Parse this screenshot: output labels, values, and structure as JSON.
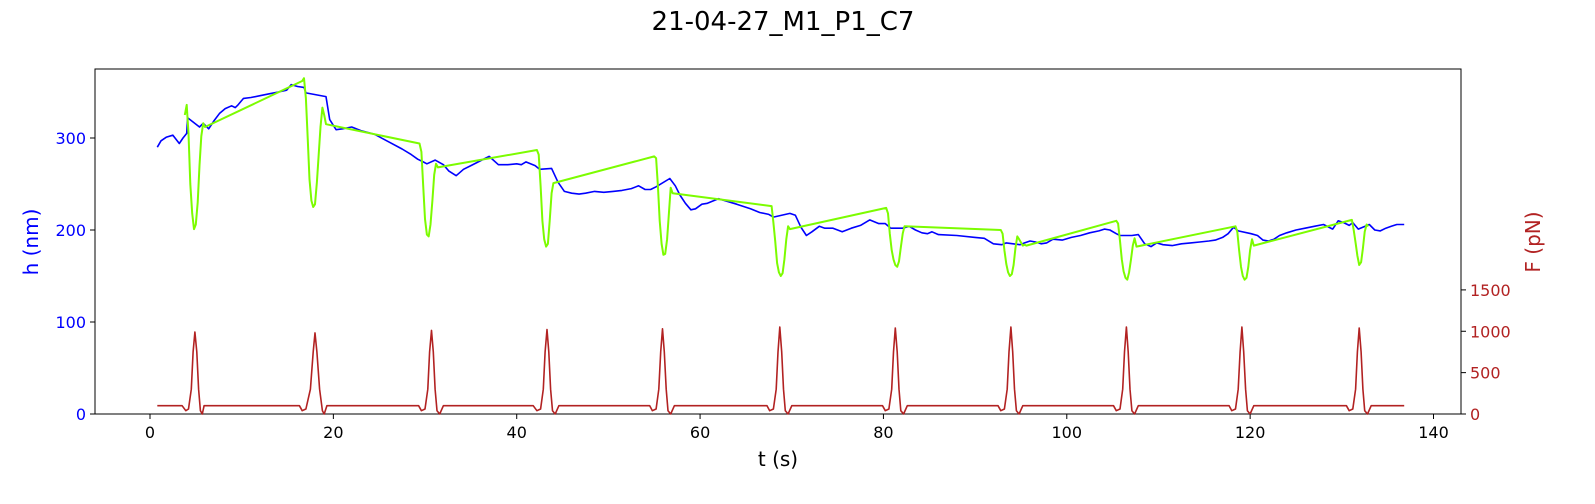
{
  "chart_data": {
    "type": "line",
    "title": "21-04-27_M1_P1_C7",
    "xlabel": "t (s)",
    "ylabel_left": "h (nm)",
    "ylabel_right": "F (pN)",
    "xlim": [
      -6,
      143
    ],
    "ylim_left": [
      0,
      375
    ],
    "ylim_right": [
      0,
      4170
    ],
    "xticks": [
      0,
      20,
      40,
      60,
      80,
      100,
      120,
      140
    ],
    "yticks_left": [
      0,
      100,
      200,
      300
    ],
    "yticks_right": [
      0,
      500,
      1000,
      1500
    ],
    "grid": false,
    "colors": {
      "left_axis": "#0000ff",
      "right_axis": "#b22222",
      "height_series": "#0000ff",
      "compression_series": "#7cfc00",
      "force_series": "#b22222"
    },
    "series": [
      {
        "axis": "left",
        "color": "#0000ff",
        "x": [
          0.8,
          1.2,
          1.8,
          2.5,
          3.2,
          3.6,
          4.0,
          4.1,
          5.4,
          5.8,
          6.4,
          7.0,
          7.6,
          8.2,
          8.9,
          9.3,
          9.6,
          10.2,
          11,
          12,
          13,
          14,
          14.9,
          15.4,
          16.1,
          16.8,
          17.0,
          19.2,
          19.6,
          20.3,
          21.0,
          22.0,
          23.0,
          24.5,
          26.0,
          27.5,
          28.5,
          29.2,
          29.8,
          30.2,
          31.1,
          32.0,
          32.6,
          33.4,
          34.2,
          35.0,
          36.0,
          37.0,
          38.0,
          39.0,
          40.0,
          40.5,
          41.0,
          42.0,
          42.5,
          43.8,
          44.5,
          45.2,
          46.0,
          46.8,
          47.5,
          48.5,
          49.5,
          50.5,
          51.5,
          52.5,
          53.3,
          54.0,
          54.6,
          55.2,
          56.7,
          57.3,
          57.8,
          58.4,
          59.0,
          59.5,
          60.2,
          60.8,
          62,
          64,
          65.5,
          66.5,
          67.5,
          68.0,
          69.8,
          70.4,
          71.0,
          71.6,
          72.2,
          73.0,
          73.6,
          74.5,
          75.5,
          76.5,
          77.5,
          78.5,
          79.5,
          80.2,
          80.8,
          82.1,
          82.8,
          83.5,
          84.2,
          84.8,
          85.3,
          86,
          88,
          90,
          91,
          92,
          92.9,
          93.4,
          94.9,
          95.4,
          96,
          96.6,
          97.2,
          97.8,
          98.5,
          99.5,
          100.5,
          101.5,
          102.5,
          103.5,
          104.1,
          104.7,
          105.4,
          105.8,
          107.1,
          107.8,
          108.5,
          109.2,
          109.8,
          110.5,
          111.5,
          112.5,
          113.5,
          114.5,
          115.5,
          116.2,
          117.0,
          117.6,
          118.2,
          118.7,
          120.1,
          120.8,
          121.4,
          122.0,
          122.6,
          123.2,
          124.0,
          125.0,
          126.0,
          127.0,
          128.0,
          129.0,
          129.6,
          130.2,
          130.8,
          131.2,
          131.8,
          133.0,
          133.6,
          134.2,
          134.8,
          135.4,
          136.0,
          136.8
        ],
        "y": [
          290,
          297,
          301,
          303,
          294,
          300,
          305,
          322,
          312,
          316,
          310,
          319,
          327,
          332,
          335,
          333,
          336,
          343,
          344,
          346,
          348,
          350,
          352,
          358,
          356,
          355,
          349,
          345,
          320,
          309,
          310,
          312,
          308,
          304,
          296,
          288,
          282,
          277,
          274,
          272,
          276,
          271,
          264,
          259,
          266,
          270,
          275,
          280,
          271,
          271,
          272,
          271,
          274,
          270,
          266,
          267,
          252,
          242,
          240,
          239,
          240,
          242,
          241,
          242,
          243,
          245,
          248,
          244,
          244,
          247,
          256,
          248,
          238,
          229,
          222,
          223,
          228,
          229,
          234,
          228,
          223,
          219,
          217,
          214,
          218,
          216,
          203,
          194,
          198,
          204,
          202,
          202,
          198,
          202,
          205,
          211,
          207,
          207,
          202,
          202,
          204,
          200,
          197,
          196,
          198,
          195,
          194,
          192,
          191,
          185,
          184,
          186,
          184,
          186,
          188,
          187,
          185,
          186,
          190,
          189,
          192,
          194,
          197,
          199,
          201,
          200,
          196,
          194,
          194,
          195,
          185,
          182,
          186,
          184,
          183,
          185,
          186,
          187,
          188,
          189,
          192,
          196,
          203,
          199,
          196,
          194,
          189,
          188,
          190,
          194,
          197,
          200,
          202,
          204,
          206,
          201,
          210,
          208,
          205,
          208,
          201,
          206,
          200,
          199,
          202,
          204,
          206,
          206
        ]
      },
      {
        "axis": "left",
        "color": "#7cfc00",
        "x": [
          3.8,
          4.0,
          4.2,
          4.4,
          4.6,
          4.8,
          5.0,
          5.2,
          5.4,
          5.6,
          5.8,
          6.0,
          16.6,
          16.8,
          17.0,
          17.2,
          17.4,
          17.6,
          17.8,
          18.0,
          18.2,
          18.4,
          18.6,
          18.8,
          19.0,
          19.2,
          29.4,
          29.6,
          29.8,
          30.0,
          30.2,
          30.4,
          30.6,
          30.8,
          31.0,
          31.2,
          31.4,
          42.2,
          42.4,
          42.6,
          42.8,
          43.0,
          43.2,
          43.4,
          43.6,
          43.8,
          44.0,
          55.0,
          55.2,
          55.4,
          55.6,
          55.8,
          56.0,
          56.2,
          56.4,
          56.6,
          56.8,
          57.0,
          67.8,
          68.0,
          68.2,
          68.4,
          68.6,
          68.8,
          69.0,
          69.2,
          69.4,
          69.6,
          69.8,
          80.3,
          80.5,
          80.7,
          80.9,
          81.1,
          81.3,
          81.5,
          81.7,
          81.9,
          82.1,
          82.3,
          92.8,
          93.0,
          93.2,
          93.4,
          93.6,
          93.8,
          94.0,
          94.2,
          94.4,
          94.6,
          94.8,
          95.2,
          95.4,
          95.6,
          105.4,
          105.6,
          105.8,
          106.0,
          106.2,
          106.4,
          106.6,
          106.8,
          107.0,
          107.2,
          107.4,
          107.6,
          118.4,
          118.6,
          118.8,
          119.0,
          119.2,
          119.4,
          119.6,
          119.8,
          120.0,
          120.2,
          120.4,
          131.1,
          131.3,
          131.5,
          131.7,
          131.9,
          132.1,
          132.3,
          132.5,
          132.7,
          132.9
        ],
        "y": [
          325,
          336,
          305,
          250,
          218,
          201,
          206,
          230,
          270,
          302,
          316,
          312,
          362,
          365,
          343,
          300,
          255,
          232,
          225,
          228,
          252,
          282,
          312,
          333,
          325,
          315,
          294,
          285,
          248,
          212,
          195,
          193,
          206,
          232,
          260,
          272,
          268,
          287,
          282,
          248,
          210,
          190,
          182,
          185,
          210,
          240,
          251,
          280,
          278,
          248,
          210,
          185,
          173,
          174,
          190,
          218,
          246,
          240,
          226,
          208,
          188,
          164,
          154,
          150,
          153,
          168,
          190,
          204,
          201,
          224,
          218,
          196,
          178,
          168,
          162,
          160,
          166,
          181,
          196,
          204,
          200,
          196,
          178,
          163,
          154,
          150,
          152,
          162,
          180,
          193,
          190,
          183,
          184,
          183,
          210,
          207,
          188,
          168,
          155,
          148,
          146,
          154,
          168,
          183,
          191,
          182,
          204,
          198,
          178,
          160,
          150,
          146,
          148,
          160,
          178,
          190,
          183,
          211,
          200,
          186,
          172,
          162,
          165,
          180,
          198,
          206,
          204
        ]
      },
      {
        "axis": "right",
        "color": "#b22222",
        "x": [
          0.8,
          2.0,
          3.3,
          3.5,
          3.9,
          4.2,
          4.5,
          4.7,
          4.9,
          5.1,
          5.3,
          5.5,
          5.7,
          5.9,
          6.2,
          7.0,
          10,
          13,
          16.0,
          16.3,
          16.6,
          17.0,
          17.5,
          17.8,
          18.0,
          18.2,
          18.5,
          18.8,
          19.0,
          19.3,
          20,
          24,
          29.0,
          29.3,
          29.6,
          30.0,
          30.3,
          30.5,
          30.7,
          30.9,
          31.1,
          31.3,
          31.6,
          32,
          36,
          41.5,
          41.8,
          42.2,
          42.6,
          42.9,
          43.1,
          43.3,
          43.5,
          43.7,
          43.9,
          44.2,
          44.6,
          48,
          54.2,
          54.5,
          54.8,
          55.2,
          55.5,
          55.7,
          55.9,
          56.1,
          56.3,
          56.5,
          56.8,
          57.2,
          62,
          67.0,
          67.3,
          67.6,
          68.0,
          68.3,
          68.5,
          68.7,
          68.9,
          69.1,
          69.3,
          69.6,
          70.0,
          75,
          79.6,
          79.9,
          80.2,
          80.6,
          80.9,
          81.1,
          81.3,
          81.5,
          81.7,
          81.9,
          82.2,
          82.6,
          88,
          92.2,
          92.5,
          92.8,
          93.2,
          93.5,
          93.7,
          93.9,
          94.1,
          94.3,
          94.5,
          94.8,
          95.2,
          100,
          104.8,
          105.1,
          105.4,
          105.8,
          106.1,
          106.3,
          106.5,
          106.7,
          106.9,
          107.1,
          107.4,
          107.8,
          113,
          117.4,
          117.7,
          118.0,
          118.4,
          118.7,
          118.9,
          119.1,
          119.3,
          119.5,
          119.7,
          120.0,
          120.4,
          126,
          130.2,
          130.5,
          130.8,
          131.2,
          131.5,
          131.7,
          131.9,
          132.1,
          132.3,
          132.5,
          132.8,
          133.2,
          136.8
        ],
        "y": [
          100,
          100,
          100,
          100,
          40,
          60,
          300,
          750,
          990,
          750,
          300,
          40,
          0,
          100,
          100,
          100,
          100,
          100,
          100,
          100,
          40,
          60,
          300,
          750,
          980,
          750,
          300,
          40,
          0,
          100,
          100,
          100,
          100,
          100,
          40,
          60,
          300,
          750,
          1010,
          750,
          300,
          40,
          0,
          100,
          100,
          100,
          100,
          40,
          60,
          300,
          750,
          1020,
          750,
          300,
          40,
          0,
          100,
          100,
          100,
          100,
          40,
          60,
          300,
          750,
          1030,
          750,
          300,
          40,
          0,
          100,
          100,
          100,
          100,
          40,
          60,
          300,
          750,
          1050,
          750,
          300,
          40,
          0,
          100,
          100,
          100,
          100,
          40,
          60,
          300,
          750,
          1040,
          750,
          300,
          40,
          0,
          100,
          100,
          100,
          100,
          40,
          60,
          300,
          750,
          1050,
          750,
          300,
          40,
          0,
          100,
          100,
          100,
          100,
          40,
          60,
          300,
          750,
          1050,
          750,
          300,
          40,
          0,
          100,
          100,
          100,
          100,
          40,
          60,
          300,
          750,
          1050,
          750,
          300,
          40,
          0,
          100,
          100,
          100,
          100,
          40,
          60,
          300,
          750,
          1040,
          750,
          300,
          40,
          0,
          100,
          100
        ]
      }
    ]
  }
}
